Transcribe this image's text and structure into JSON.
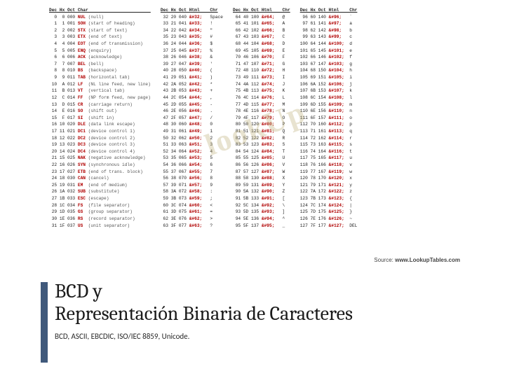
{
  "title": {
    "line1": "BCD y",
    "line2": "Representación Binaria de Caracteres",
    "subtitle": "BCD, ASCII, EBCDIC, ISO/IEC 8859, Unicode.",
    "accent_color": "#40597b",
    "title_fontsize": 28,
    "subtitle_fontsize": 11
  },
  "watermark": "lookUp",
  "table": {
    "source_label": "Source: ",
    "source_url": "www.LookupTables.com",
    "header": "Dec Hx Oct Char",
    "header2": "Dec Hx Oct Html Chr",
    "col1_left": [
      [
        "0",
        "0",
        "000",
        "NUL",
        "(null)"
      ],
      [
        "1",
        "1",
        "001",
        "SOH",
        "(start of heading)"
      ],
      [
        "2",
        "2",
        "002",
        "STX",
        "(start of text)"
      ],
      [
        "3",
        "3",
        "003",
        "ETX",
        "(end of text)"
      ],
      [
        "4",
        "4",
        "004",
        "EOT",
        "(end of transmission)"
      ],
      [
        "5",
        "5",
        "005",
        "ENQ",
        "(enquiry)"
      ],
      [
        "6",
        "6",
        "006",
        "ACK",
        "(acknowledge)"
      ],
      [
        "7",
        "7",
        "007",
        "BEL",
        "(bell)"
      ],
      [
        "8",
        "8",
        "010",
        "BS",
        "(backspace)"
      ],
      [
        "9",
        "9",
        "011",
        "TAB",
        "(horizontal tab)"
      ],
      [
        "10",
        "A",
        "012",
        "LF",
        "(NL line feed, new line)"
      ],
      [
        "11",
        "B",
        "013",
        "VT",
        "(vertical tab)"
      ],
      [
        "12",
        "C",
        "014",
        "FF",
        "(NP form feed, new page)"
      ],
      [
        "13",
        "D",
        "015",
        "CR",
        "(carriage return)"
      ],
      [
        "14",
        "E",
        "016",
        "SO",
        "(shift out)"
      ],
      [
        "15",
        "F",
        "017",
        "SI",
        "(shift in)"
      ],
      [
        "16",
        "10",
        "020",
        "DLE",
        "(data link escape)"
      ],
      [
        "17",
        "11",
        "021",
        "DC1",
        "(device control 1)"
      ],
      [
        "18",
        "12",
        "022",
        "DC2",
        "(device control 2)"
      ],
      [
        "19",
        "13",
        "023",
        "DC3",
        "(device control 3)"
      ],
      [
        "20",
        "14",
        "024",
        "DC4",
        "(device control 4)"
      ],
      [
        "21",
        "15",
        "025",
        "NAK",
        "(negative acknowledge)"
      ],
      [
        "22",
        "16",
        "026",
        "SYN",
        "(synchronous idle)"
      ],
      [
        "23",
        "17",
        "027",
        "ETB",
        "(end of trans. block)"
      ],
      [
        "24",
        "18",
        "030",
        "CAN",
        "(cancel)"
      ],
      [
        "25",
        "19",
        "031",
        "EM",
        "(end of medium)"
      ],
      [
        "26",
        "1A",
        "032",
        "SUB",
        "(substitute)"
      ],
      [
        "27",
        "1B",
        "033",
        "ESC",
        "(escape)"
      ],
      [
        "28",
        "1C",
        "034",
        "FS",
        "(file separator)"
      ],
      [
        "29",
        "1D",
        "035",
        "GS",
        "(group separator)"
      ],
      [
        "30",
        "1E",
        "036",
        "RS",
        "(record separator)"
      ],
      [
        "31",
        "1F",
        "037",
        "US",
        "(unit separator)"
      ]
    ],
    "col2": [
      [
        "32",
        "20",
        "040",
        "&#32;",
        "Space"
      ],
      [
        "33",
        "21",
        "041",
        "&#33;",
        "!"
      ],
      [
        "34",
        "22",
        "042",
        "&#34;",
        "\""
      ],
      [
        "35",
        "23",
        "043",
        "&#35;",
        "#"
      ],
      [
        "36",
        "24",
        "044",
        "&#36;",
        "$"
      ],
      [
        "37",
        "25",
        "045",
        "&#37;",
        "%"
      ],
      [
        "38",
        "26",
        "046",
        "&#38;",
        "&"
      ],
      [
        "39",
        "27",
        "047",
        "&#39;",
        "'"
      ],
      [
        "40",
        "28",
        "050",
        "&#40;",
        "("
      ],
      [
        "41",
        "29",
        "051",
        "&#41;",
        ")"
      ],
      [
        "42",
        "2A",
        "052",
        "&#42;",
        "*"
      ],
      [
        "43",
        "2B",
        "053",
        "&#43;",
        "+"
      ],
      [
        "44",
        "2C",
        "054",
        "&#44;",
        ","
      ],
      [
        "45",
        "2D",
        "055",
        "&#45;",
        "-"
      ],
      [
        "46",
        "2E",
        "056",
        "&#46;",
        "."
      ],
      [
        "47",
        "2F",
        "057",
        "&#47;",
        "/"
      ],
      [
        "48",
        "30",
        "060",
        "&#48;",
        "0"
      ],
      [
        "49",
        "31",
        "061",
        "&#49;",
        "1"
      ],
      [
        "50",
        "32",
        "062",
        "&#50;",
        "2"
      ],
      [
        "51",
        "33",
        "063",
        "&#51;",
        "3"
      ],
      [
        "52",
        "34",
        "064",
        "&#52;",
        "4"
      ],
      [
        "53",
        "35",
        "065",
        "&#53;",
        "5"
      ],
      [
        "54",
        "36",
        "066",
        "&#54;",
        "6"
      ],
      [
        "55",
        "37",
        "067",
        "&#55;",
        "7"
      ],
      [
        "56",
        "38",
        "070",
        "&#56;",
        "8"
      ],
      [
        "57",
        "39",
        "071",
        "&#57;",
        "9"
      ],
      [
        "58",
        "3A",
        "072",
        "&#58;",
        ":"
      ],
      [
        "59",
        "3B",
        "073",
        "&#59;",
        ";"
      ],
      [
        "60",
        "3C",
        "074",
        "&#60;",
        "<"
      ],
      [
        "61",
        "3D",
        "075",
        "&#61;",
        "="
      ],
      [
        "62",
        "3E",
        "076",
        "&#62;",
        ">"
      ],
      [
        "63",
        "3F",
        "077",
        "&#63;",
        "?"
      ]
    ],
    "col3": [
      [
        "64",
        "40",
        "100",
        "&#64;",
        "@"
      ],
      [
        "65",
        "41",
        "101",
        "&#65;",
        "A"
      ],
      [
        "66",
        "42",
        "102",
        "&#66;",
        "B"
      ],
      [
        "67",
        "43",
        "103",
        "&#67;",
        "C"
      ],
      [
        "68",
        "44",
        "104",
        "&#68;",
        "D"
      ],
      [
        "69",
        "45",
        "105",
        "&#69;",
        "E"
      ],
      [
        "70",
        "46",
        "106",
        "&#70;",
        "F"
      ],
      [
        "71",
        "47",
        "107",
        "&#71;",
        "G"
      ],
      [
        "72",
        "48",
        "110",
        "&#72;",
        "H"
      ],
      [
        "73",
        "49",
        "111",
        "&#73;",
        "I"
      ],
      [
        "74",
        "4A",
        "112",
        "&#74;",
        "J"
      ],
      [
        "75",
        "4B",
        "113",
        "&#75;",
        "K"
      ],
      [
        "76",
        "4C",
        "114",
        "&#76;",
        "L"
      ],
      [
        "77",
        "4D",
        "115",
        "&#77;",
        "M"
      ],
      [
        "78",
        "4E",
        "116",
        "&#78;",
        "N"
      ],
      [
        "79",
        "4F",
        "117",
        "&#79;",
        "O"
      ],
      [
        "80",
        "50",
        "120",
        "&#80;",
        "P"
      ],
      [
        "81",
        "51",
        "121",
        "&#81;",
        "Q"
      ],
      [
        "82",
        "52",
        "122",
        "&#82;",
        "R"
      ],
      [
        "83",
        "53",
        "123",
        "&#83;",
        "S"
      ],
      [
        "84",
        "54",
        "124",
        "&#84;",
        "T"
      ],
      [
        "85",
        "55",
        "125",
        "&#85;",
        "U"
      ],
      [
        "86",
        "56",
        "126",
        "&#86;",
        "V"
      ],
      [
        "87",
        "57",
        "127",
        "&#87;",
        "W"
      ],
      [
        "88",
        "58",
        "130",
        "&#88;",
        "X"
      ],
      [
        "89",
        "59",
        "131",
        "&#89;",
        "Y"
      ],
      [
        "90",
        "5A",
        "132",
        "&#90;",
        "Z"
      ],
      [
        "91",
        "5B",
        "133",
        "&#91;",
        "["
      ],
      [
        "92",
        "5C",
        "134",
        "&#92;",
        "\\"
      ],
      [
        "93",
        "5D",
        "135",
        "&#93;",
        "]"
      ],
      [
        "94",
        "5E",
        "136",
        "&#94;",
        "^"
      ],
      [
        "95",
        "5F",
        "137",
        "&#95;",
        "_"
      ]
    ],
    "col4": [
      [
        "96",
        "60",
        "140",
        "&#96;",
        "`"
      ],
      [
        "97",
        "61",
        "141",
        "&#97;",
        "a"
      ],
      [
        "98",
        "62",
        "142",
        "&#98;",
        "b"
      ],
      [
        "99",
        "63",
        "143",
        "&#99;",
        "c"
      ],
      [
        "100",
        "64",
        "144",
        "&#100;",
        "d"
      ],
      [
        "101",
        "65",
        "145",
        "&#101;",
        "e"
      ],
      [
        "102",
        "66",
        "146",
        "&#102;",
        "f"
      ],
      [
        "103",
        "67",
        "147",
        "&#103;",
        "g"
      ],
      [
        "104",
        "68",
        "150",
        "&#104;",
        "h"
      ],
      [
        "105",
        "69",
        "151",
        "&#105;",
        "i"
      ],
      [
        "106",
        "6A",
        "152",
        "&#106;",
        "j"
      ],
      [
        "107",
        "6B",
        "153",
        "&#107;",
        "k"
      ],
      [
        "108",
        "6C",
        "154",
        "&#108;",
        "l"
      ],
      [
        "109",
        "6D",
        "155",
        "&#109;",
        "m"
      ],
      [
        "110",
        "6E",
        "156",
        "&#110;",
        "n"
      ],
      [
        "111",
        "6F",
        "157",
        "&#111;",
        "o"
      ],
      [
        "112",
        "70",
        "160",
        "&#112;",
        "p"
      ],
      [
        "113",
        "71",
        "161",
        "&#113;",
        "q"
      ],
      [
        "114",
        "72",
        "162",
        "&#114;",
        "r"
      ],
      [
        "115",
        "73",
        "163",
        "&#115;",
        "s"
      ],
      [
        "116",
        "74",
        "164",
        "&#116;",
        "t"
      ],
      [
        "117",
        "75",
        "165",
        "&#117;",
        "u"
      ],
      [
        "118",
        "76",
        "166",
        "&#118;",
        "v"
      ],
      [
        "119",
        "77",
        "167",
        "&#119;",
        "w"
      ],
      [
        "120",
        "78",
        "170",
        "&#120;",
        "x"
      ],
      [
        "121",
        "79",
        "171",
        "&#121;",
        "y"
      ],
      [
        "122",
        "7A",
        "172",
        "&#122;",
        "z"
      ],
      [
        "123",
        "7B",
        "173",
        "&#123;",
        "{"
      ],
      [
        "124",
        "7C",
        "174",
        "&#124;",
        "|"
      ],
      [
        "125",
        "7D",
        "175",
        "&#125;",
        "}"
      ],
      [
        "126",
        "7E",
        "176",
        "&#126;",
        "~"
      ],
      [
        "127",
        "7F",
        "177",
        "&#127;",
        "DEL"
      ]
    ]
  }
}
